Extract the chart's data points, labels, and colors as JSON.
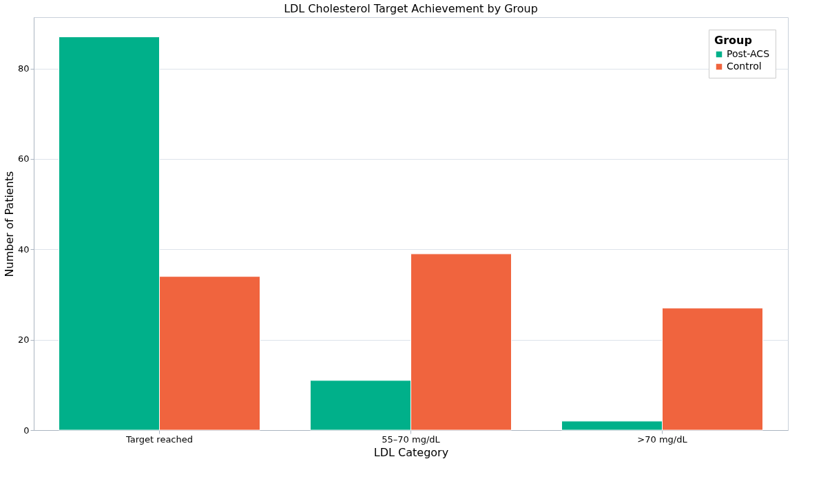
{
  "chart_data": {
    "type": "bar",
    "title": "LDL Cholesterol Target Achievement by Group",
    "xlabel": "LDL Category",
    "ylabel": "Number of Patients",
    "legend_title": "Group",
    "categories": [
      "Target reached",
      "55–70 mg/dL",
      ">70 mg/dL"
    ],
    "series": [
      {
        "name": "Post-ACS",
        "color": "#00b08a",
        "values": [
          87,
          11,
          2
        ]
      },
      {
        "name": "Control",
        "color": "#f0643e",
        "values": [
          34,
          39,
          27
        ]
      }
    ],
    "ylim": [
      0,
      91.35
    ],
    "yticks": [
      0,
      20,
      40,
      60,
      80
    ],
    "grid": "y",
    "legend": "top right"
  }
}
